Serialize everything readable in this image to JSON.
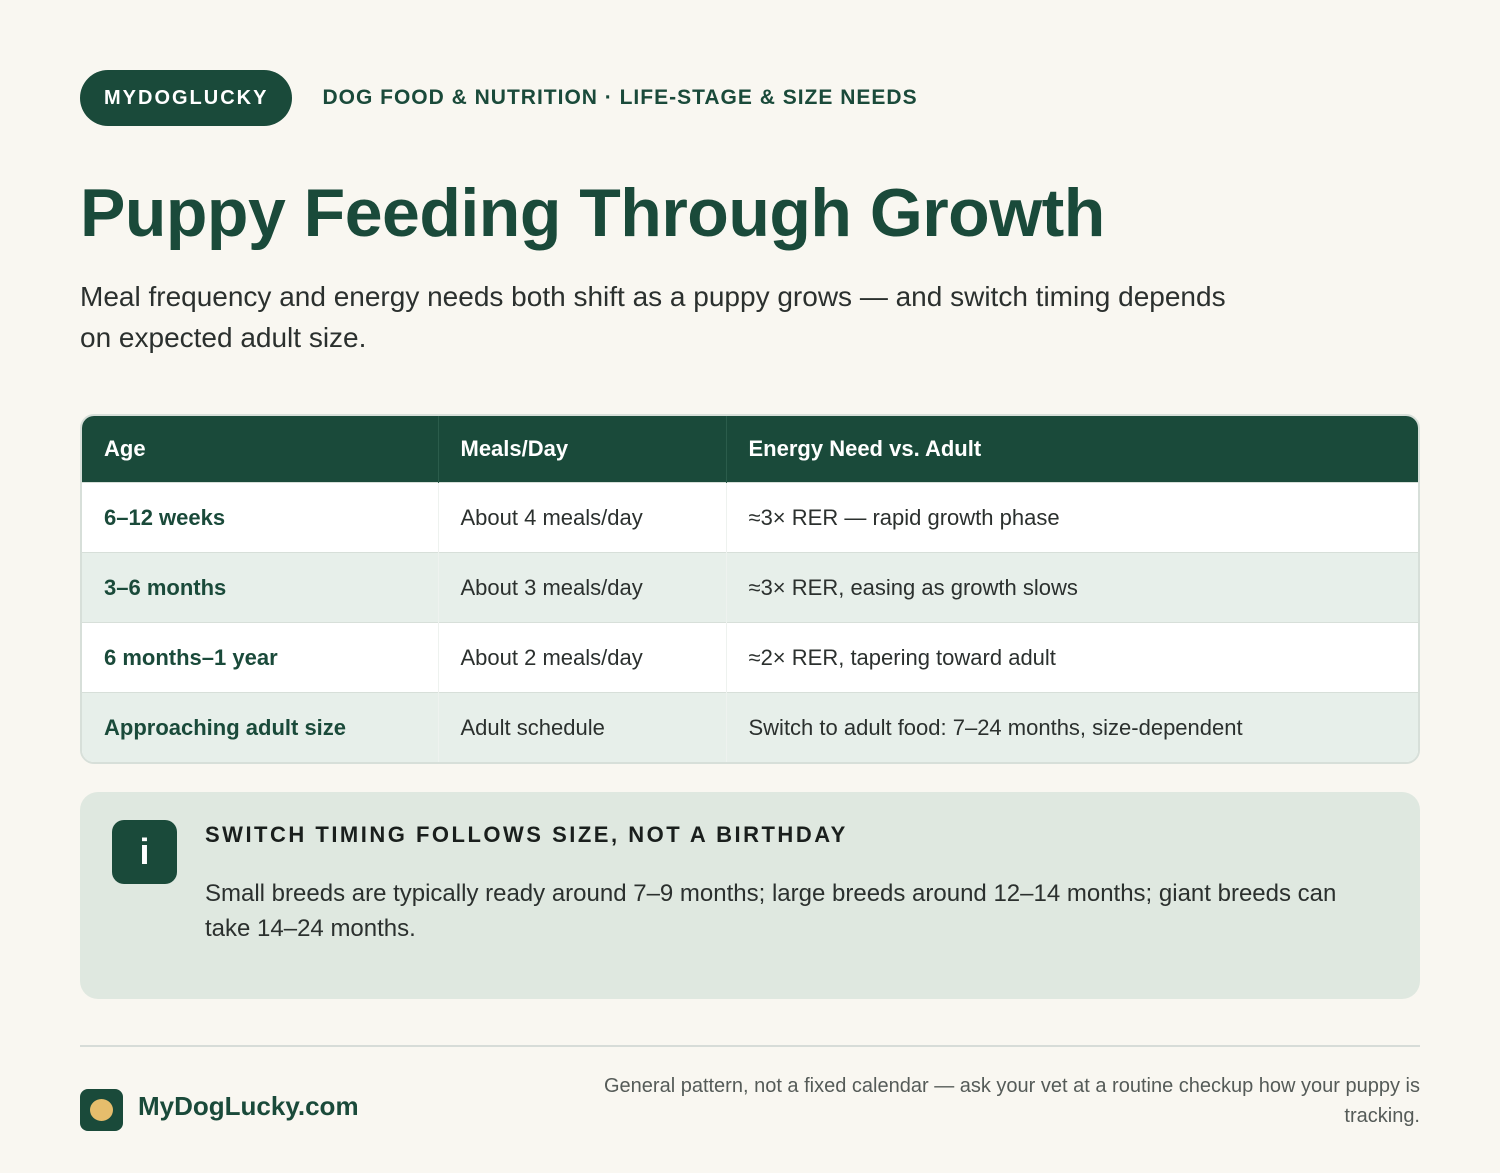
{
  "header": {
    "brand": "MYDOGLUCKY",
    "kicker": "DOG FOOD & NUTRITION · LIFE-STAGE & SIZE NEEDS"
  },
  "title": "Puppy Feeding Through Growth",
  "subtitle": "Meal frequency and energy needs both shift as a puppy grows — and switch timing depends on expected adult size.",
  "table": {
    "columns": [
      "Age",
      "Meals/Day",
      "Energy Need vs. Adult"
    ],
    "rows": [
      {
        "age": "6–12 weeks",
        "meals": "About 4 meals/day",
        "energy": "≈3× RER — rapid growth phase"
      },
      {
        "age": "3–6 months",
        "meals": "About 3 meals/day",
        "energy": "≈3× RER, easing as growth slows"
      },
      {
        "age": "6 months–1 year",
        "meals": "About 2 meals/day",
        "energy": "≈2× RER, tapering toward adult"
      },
      {
        "age": "Approaching adult size",
        "meals": "Adult schedule",
        "energy": "Switch to adult food: 7–24 months, size-dependent"
      }
    ]
  },
  "note": {
    "icon": "i",
    "title": "SWITCH TIMING FOLLOWS SIZE, NOT A BIRTHDAY",
    "body": "Small breeds are typically ready around 7–9 months; large breeds around 12–14 months; giant breeds can take 14–24 months."
  },
  "footer": {
    "site": "MyDogLucky.com",
    "disclaimer": "General pattern, not a fixed calendar — ask your vet at a routine checkup how your puppy is tracking."
  },
  "colors": {
    "primary": "#1a4a3a",
    "background": "#f9f7f1",
    "row_alt": "#e7efea",
    "note_bg": "#dfe8e0",
    "logo_dot": "#e6bd6c"
  }
}
